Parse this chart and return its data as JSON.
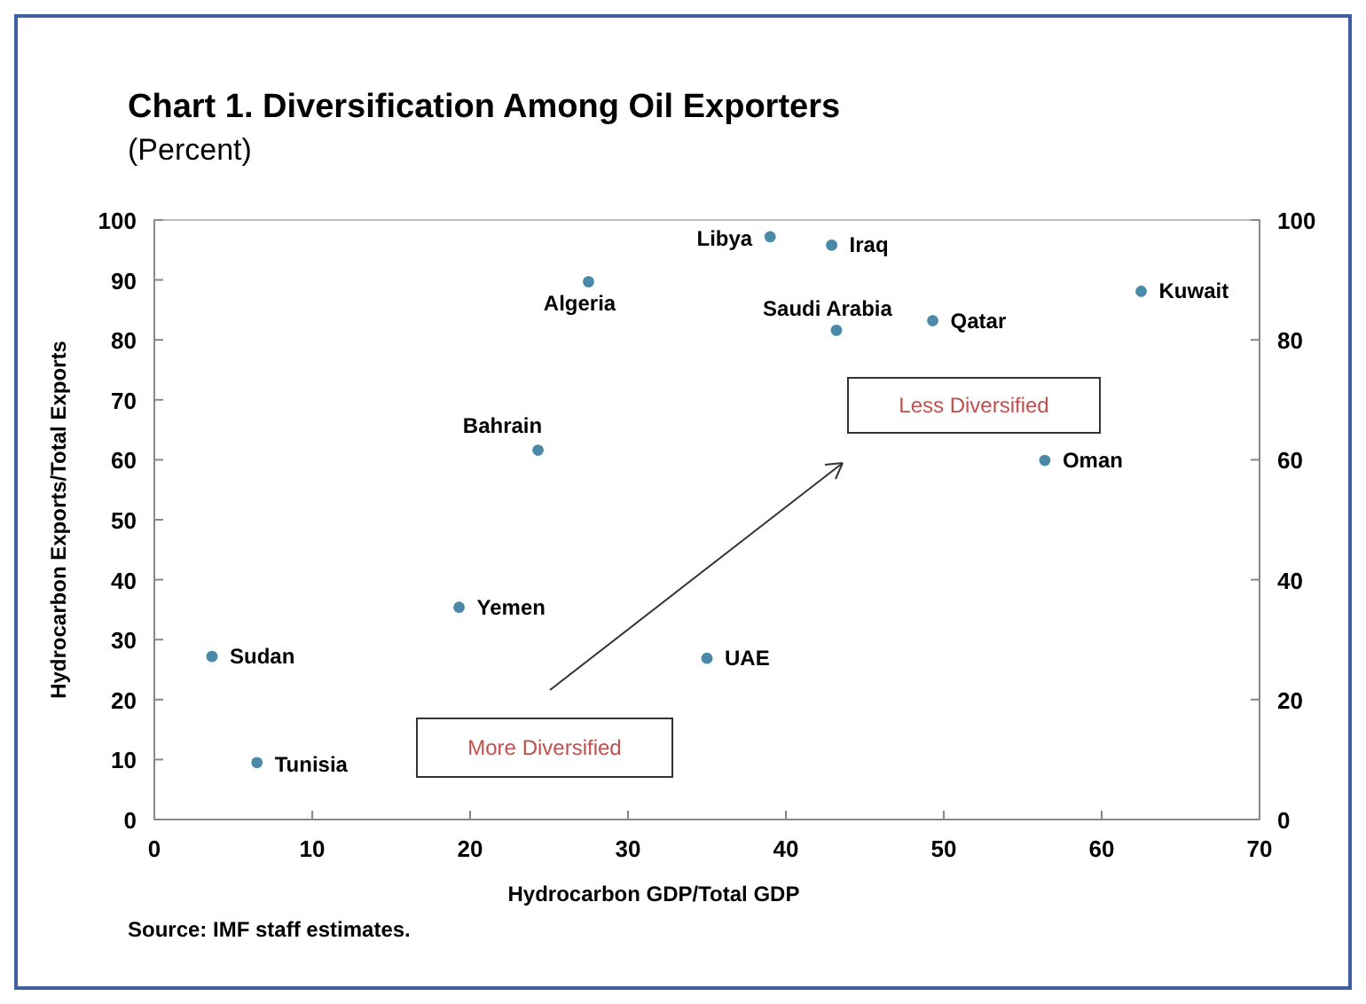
{
  "chart_data": {
    "type": "scatter",
    "title": "Chart 1. Diversification  Among Oil Exporters",
    "subtitle": "(Percent)",
    "xlabel": "Hydrocarbon GDP/Total GDP",
    "ylabel": "Hydrocarbon Exports/Total Exports",
    "series": [
      {
        "color": "#4a8aa8",
        "x": [
          3.65,
          6.5,
          19.3,
          24.3,
          27.5,
          35.0,
          39.0,
          42.9,
          43.2,
          49.3,
          62.5,
          56.4
        ],
        "values": [
          27.2,
          9.5,
          35.4,
          61.6,
          89.7,
          26.9,
          97.2,
          95.8,
          81.6,
          83.2,
          88.1,
          59.9
        ]
      }
    ],
    "marker": "circle",
    "grid": false,
    "xlim": [
      0,
      70
    ],
    "xticks": [
      0,
      10,
      20,
      30,
      40,
      50,
      60,
      70
    ],
    "ylim": [
      0,
      100
    ],
    "yticks": [
      0,
      10,
      20,
      30,
      40,
      50,
      60,
      70,
      80,
      90,
      100
    ],
    "y2lim": [
      0,
      100
    ],
    "y2ticks": [
      0,
      20,
      40,
      60,
      80,
      100
    ],
    "annotations": [
      {
        "text": "Sudan",
        "x": 3.65,
        "y": 27.2
      },
      {
        "text": "Tunisia",
        "x": 6.5,
        "y": 9.5
      },
      {
        "text": "Yemen",
        "x": 19.3,
        "y": 35.4
      },
      {
        "text": "Bahrain",
        "x": 24.3,
        "y": 61.6
      },
      {
        "text": "Algeria",
        "x": 27.5,
        "y": 89.7
      },
      {
        "text": "UAE",
        "x": 35.0,
        "y": 26.9
      },
      {
        "text": "Libya",
        "x": 39.0,
        "y": 97.2
      },
      {
        "text": "Iraq",
        "x": 42.9,
        "y": 95.8
      },
      {
        "text": "Saudi Arabia",
        "x": 43.2,
        "y": 81.6
      },
      {
        "text": "Qatar",
        "x": 49.3,
        "y": 83.2
      },
      {
        "text": "Kuwait",
        "x": 62.5,
        "y": 88.1
      },
      {
        "text": "Oman",
        "x": 56.4,
        "y": 59.9
      },
      "More Diversified",
      "Less Diversified",
      "Source: IMF staff estimates."
    ]
  }
}
